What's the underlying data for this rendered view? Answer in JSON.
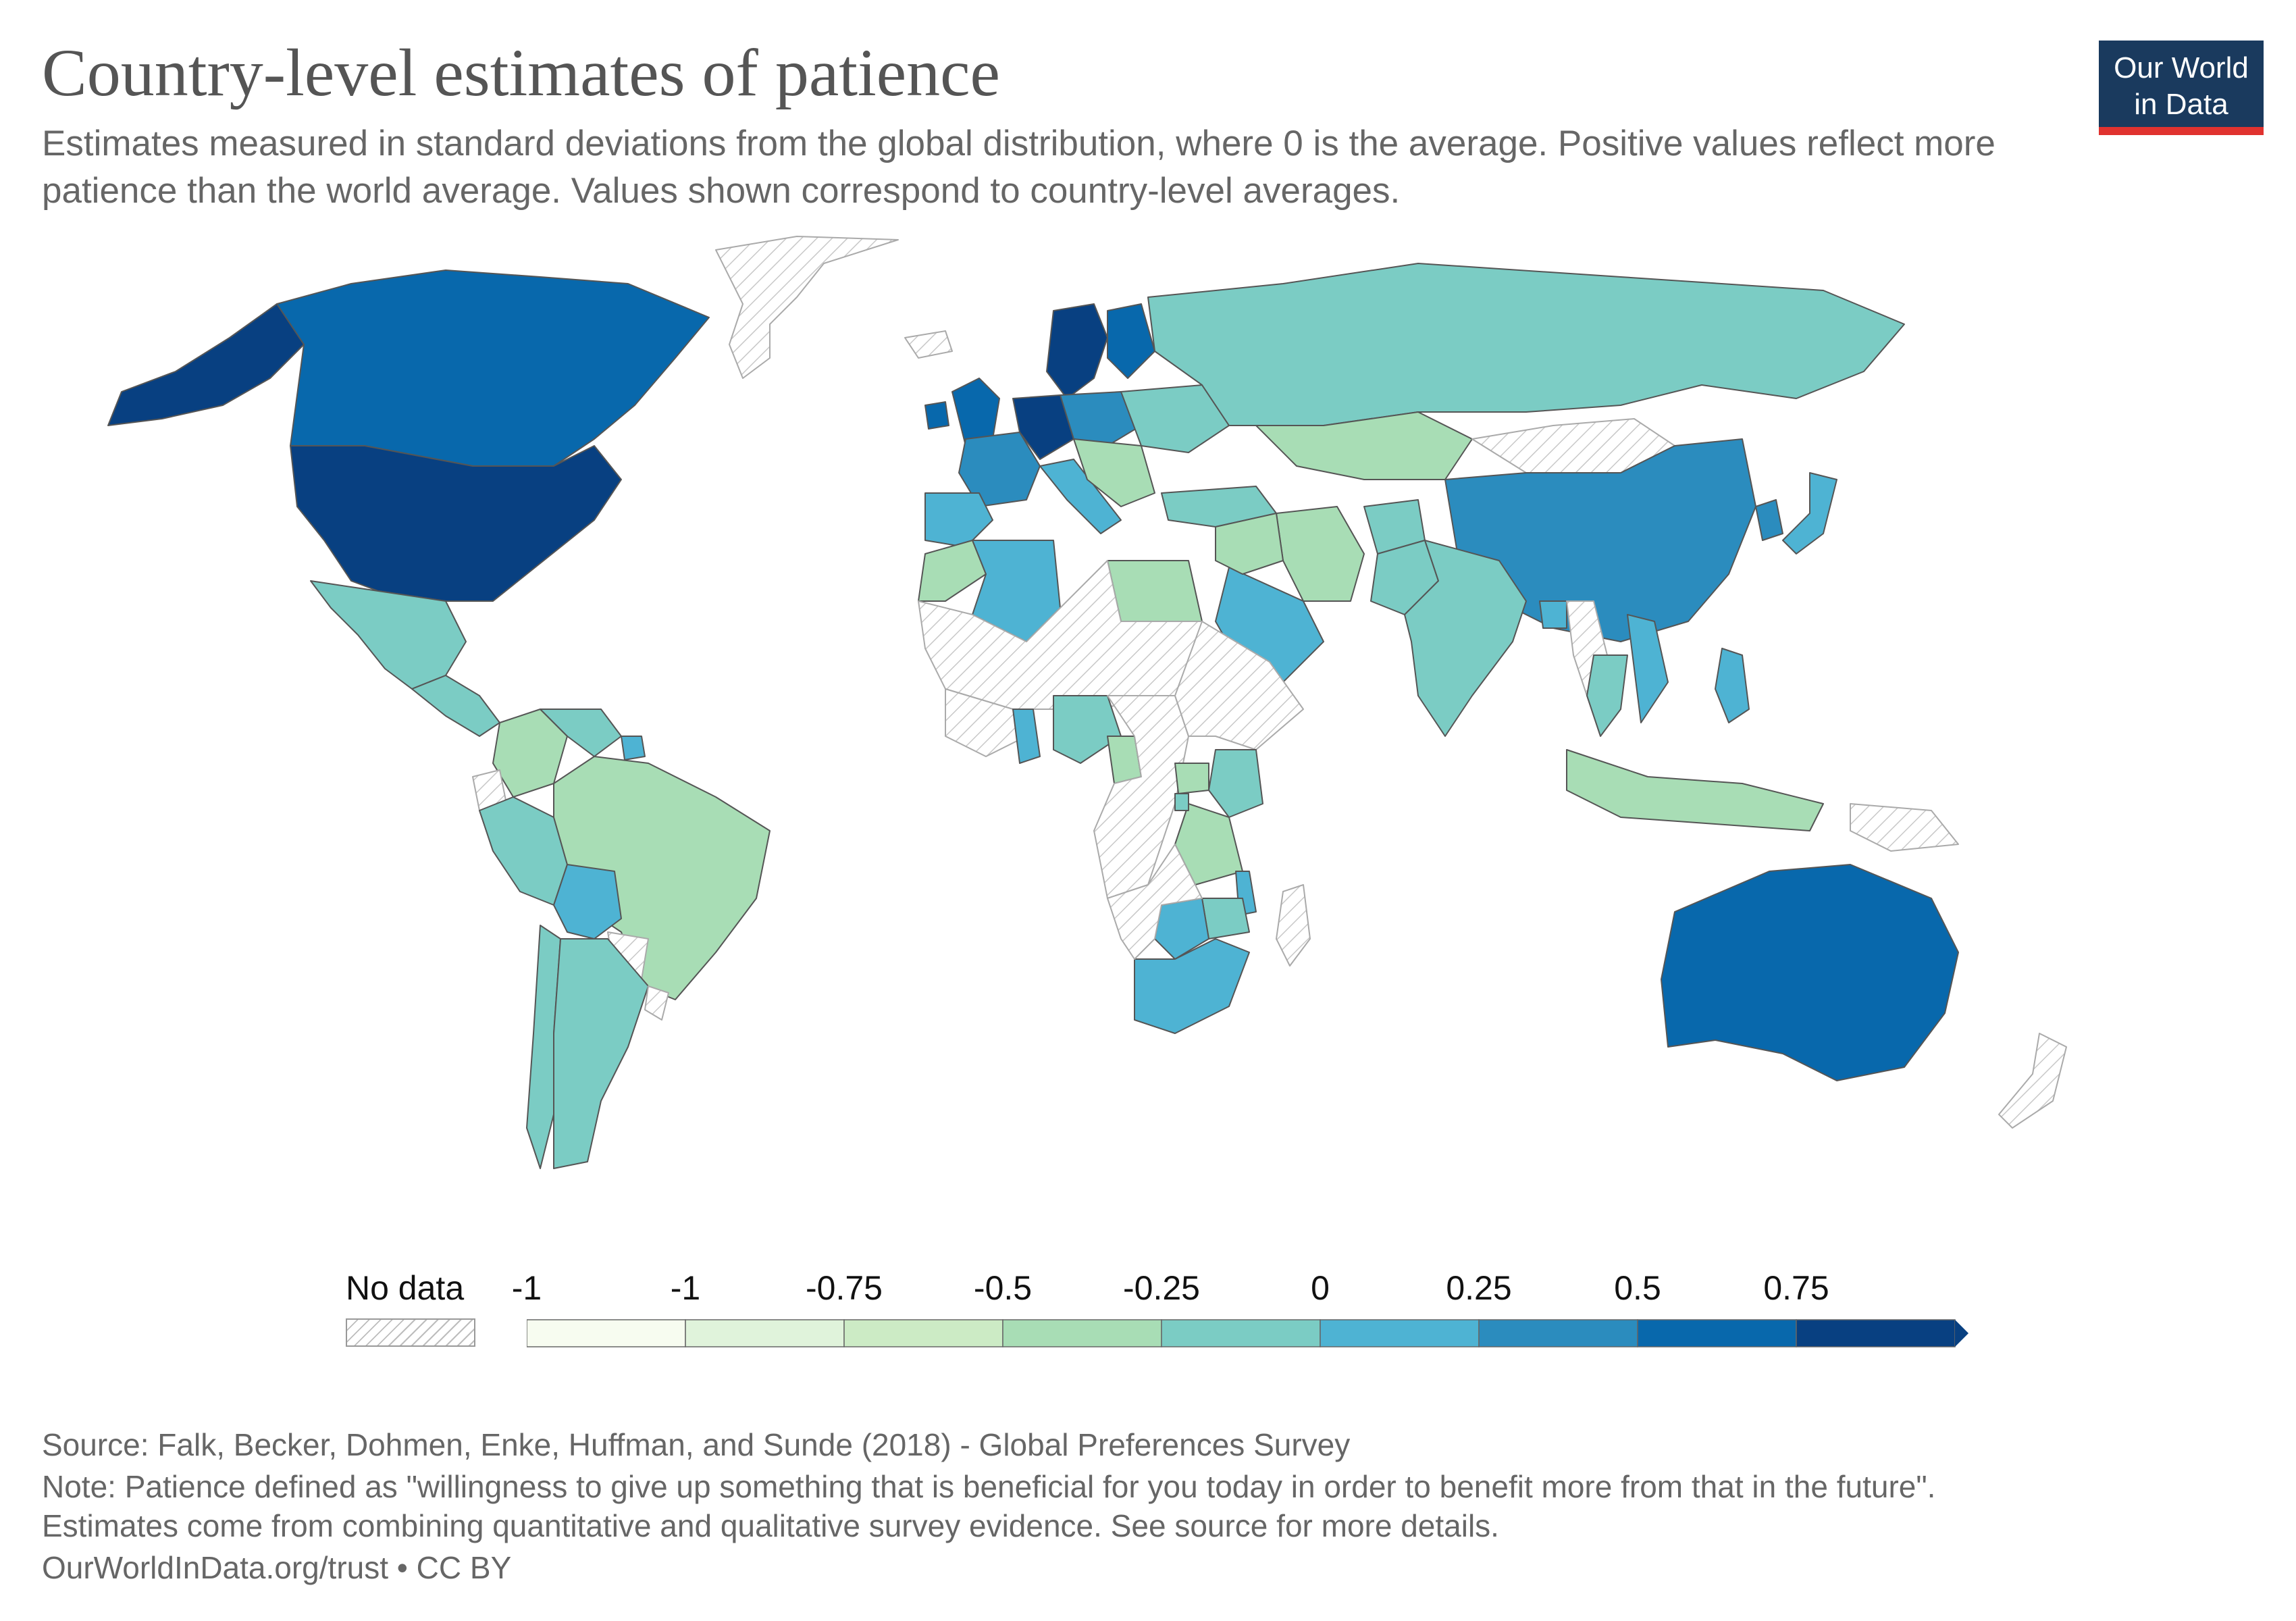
{
  "title": "Country-level estimates of patience",
  "subtitle": "Estimates measured in standard deviations from the global distribution, where 0 is the average. Positive values reflect more patience than the world average. Values shown correspond to country-level averages.",
  "logo": {
    "line1": "Our World",
    "line2": "in Data",
    "bg": "#1a3a5e",
    "accent": "#e0322f"
  },
  "legend": {
    "nodata_label": "No data",
    "ticks": [
      "-1",
      "-1",
      "-0.75",
      "-0.5",
      "-0.25",
      "0",
      "0.25",
      "0.5",
      "0.75"
    ],
    "colors": [
      "#f7fcf0",
      "#e0f3db",
      "#ccebc5",
      "#a8ddb5",
      "#7bccc4",
      "#4eb3d3",
      "#2b8cbe",
      "#0868ac",
      "#084081"
    ]
  },
  "map_data": {
    "colors": {
      "no_data": "#f2f2f2",
      "neg_050": "#a8ddb5",
      "neg_025": "#7bccc4",
      "pos_000": "#4eb3d3",
      "pos_025": "#2b8cbe",
      "pos_050": "#0868ac",
      "pos_075": "#084081"
    },
    "regions": [
      {
        "name": "Greenland",
        "bin": "no_data"
      },
      {
        "name": "Alaska",
        "bin": "pos_075"
      },
      {
        "name": "Canada",
        "bin": "pos_050"
      },
      {
        "name": "United States",
        "bin": "pos_075"
      },
      {
        "name": "Mexico",
        "bin": "neg_025"
      },
      {
        "name": "Central America",
        "bin": "neg_025"
      },
      {
        "name": "Colombia",
        "bin": "neg_050"
      },
      {
        "name": "Venezuela",
        "bin": "neg_025"
      },
      {
        "name": "Suriname",
        "bin": "pos_000"
      },
      {
        "name": "Ecuador",
        "bin": "no_data"
      },
      {
        "name": "Peru",
        "bin": "neg_025"
      },
      {
        "name": "Brazil",
        "bin": "neg_050"
      },
      {
        "name": "Bolivia",
        "bin": "pos_000"
      },
      {
        "name": "Paraguay",
        "bin": "no_data"
      },
      {
        "name": "Chile",
        "bin": "neg_025"
      },
      {
        "name": "Argentina",
        "bin": "neg_025"
      },
      {
        "name": "Uruguay",
        "bin": "no_data"
      },
      {
        "name": "Iceland",
        "bin": "no_data"
      },
      {
        "name": "United Kingdom",
        "bin": "pos_050"
      },
      {
        "name": "Ireland",
        "bin": "pos_050"
      },
      {
        "name": "Sweden",
        "bin": "pos_075"
      },
      {
        "name": "Finland",
        "bin": "pos_050"
      },
      {
        "name": "France",
        "bin": "pos_025"
      },
      {
        "name": "Iberia",
        "bin": "pos_000"
      },
      {
        "name": "Germany",
        "bin": "pos_075"
      },
      {
        "name": "Central Europe",
        "bin": "pos_025"
      },
      {
        "name": "Italy",
        "bin": "pos_000"
      },
      {
        "name": "Eastern Europe",
        "bin": "neg_025"
      },
      {
        "name": "Balkans",
        "bin": "neg_050"
      },
      {
        "name": "Russia",
        "bin": "neg_025"
      },
      {
        "name": "Kazakhstan",
        "bin": "neg_050"
      },
      {
        "name": "Mongolia",
        "bin": "no_data"
      },
      {
        "name": "China",
        "bin": "pos_025"
      },
      {
        "name": "Korea",
        "bin": "pos_025"
      },
      {
        "name": "Japan",
        "bin": "pos_000"
      },
      {
        "name": "Turkey",
        "bin": "neg_025"
      },
      {
        "name": "Iran",
        "bin": "neg_050"
      },
      {
        "name": "Afghanistan",
        "bin": "neg_025"
      },
      {
        "name": "Pakistan",
        "bin": "neg_025"
      },
      {
        "name": "India",
        "bin": "neg_025"
      },
      {
        "name": "Bangladesh",
        "bin": "pos_000"
      },
      {
        "name": "Myanmar",
        "bin": "no_data"
      },
      {
        "name": "Thailand",
        "bin": "neg_025"
      },
      {
        "name": "Vietnam",
        "bin": "pos_000"
      },
      {
        "name": "Philippines",
        "bin": "pos_000"
      },
      {
        "name": "Indonesia",
        "bin": "neg_050"
      },
      {
        "name": "Papua New Guinea",
        "bin": "no_data"
      },
      {
        "name": "Australia",
        "bin": "pos_050"
      },
      {
        "name": "New Zealand",
        "bin": "no_data"
      },
      {
        "name": "Saudi Arabia",
        "bin": "pos_000"
      },
      {
        "name": "Iraq",
        "bin": "neg_050"
      },
      {
        "name": "Egypt",
        "bin": "neg_050"
      },
      {
        "name": "Morocco",
        "bin": "neg_050"
      },
      {
        "name": "Algeria",
        "bin": "pos_000"
      },
      {
        "name": "Sahara",
        "bin": "no_data"
      },
      {
        "name": "Sahel",
        "bin": "no_data"
      },
      {
        "name": "Ghana",
        "bin": "pos_000"
      },
      {
        "name": "Nigeria",
        "bin": "neg_025"
      },
      {
        "name": "Cameroon",
        "bin": "neg_050"
      },
      {
        "name": "Central Africa",
        "bin": "no_data"
      },
      {
        "name": "Horn of Africa",
        "bin": "no_data"
      },
      {
        "name": "Uganda",
        "bin": "neg_050"
      },
      {
        "name": "Kenya",
        "bin": "neg_025"
      },
      {
        "name": "Tanzania",
        "bin": "neg_050"
      },
      {
        "name": "Rwanda",
        "bin": "neg_025"
      },
      {
        "name": "Malawi",
        "bin": "pos_000"
      },
      {
        "name": "Zimbabwe",
        "bin": "neg_025"
      },
      {
        "name": "Botswana",
        "bin": "pos_000"
      },
      {
        "name": "South Africa",
        "bin": "pos_000"
      },
      {
        "name": "Southern Africa",
        "bin": "no_data"
      },
      {
        "name": "Madagascar",
        "bin": "no_data"
      }
    ]
  },
  "footer": {
    "source": "Source: Falk, Becker, Dohmen, Enke, Huffman, and Sunde (2018) - Global Preferences Survey",
    "note1": "Note: Patience defined as \"willingness to give up something that is beneficial for you today in order to benefit more from that in the future\".",
    "note2": "Estimates come from combining quantitative and qualitative survey evidence. See source for more details.",
    "url": "OurWorldInData.org/trust • CC BY"
  }
}
